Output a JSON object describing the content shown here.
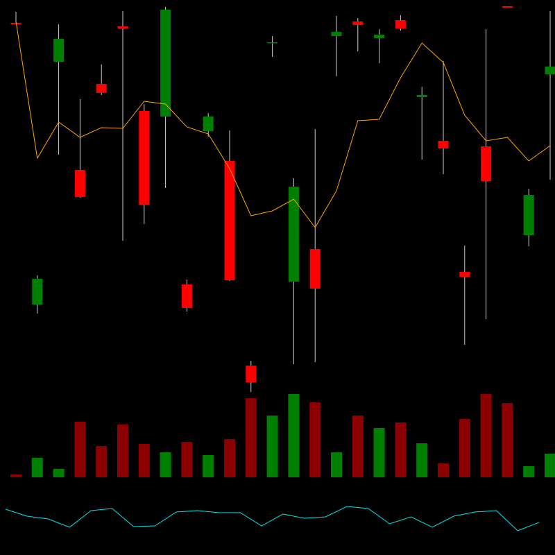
{
  "chart_data": [
    {
      "type": "candlestick",
      "up_color": "#008000",
      "down_color": "#ff0000",
      "wick_color": "#d0d0d0",
      "ylim": [
        0,
        570
      ],
      "open": [
        537,
        131,
        481,
        325,
        449,
        532,
        410,
        402,
        160,
        381,
        338,
        43,
        508,
        164,
        211,
        518,
        539,
        515,
        541,
        430,
        367,
        178,
        359,
        561,
        231,
        463
      ],
      "close": [
        535,
        168,
        514,
        286,
        436,
        529,
        275,
        556,
        126,
        402,
        166,
        19,
        509,
        301,
        154,
        524,
        534,
        520,
        529,
        433,
        356,
        171,
        309,
        559,
        289,
        474
      ],
      "high": [
        553,
        173,
        535,
        427,
        477,
        554,
        420,
        560,
        167,
        407,
        382,
        50,
        518,
        313,
        384,
        547,
        544,
        528,
        548,
        445,
        482,
        216,
        528,
        561,
        298,
        554
      ],
      "low": [
        535,
        118,
        347,
        285,
        433,
        223,
        247,
        299,
        121,
        373,
        165,
        5,
        488,
        45,
        48,
        460,
        496,
        479,
        526,
        340,
        319,
        73,
        110,
        559,
        215,
        311
      ],
      "series": [
        {
          "color": "#ffa500",
          "values": [
            539,
            342,
            394,
            372,
            386,
            385,
            424,
            420,
            387,
            377,
            327,
            259,
            266,
            283,
            242,
            295,
            396,
            398,
            458,
            508,
            480,
            404,
            367,
            372,
            338,
            360
          ]
        }
      ]
    },
    {
      "type": "bar",
      "up_color": "#008000",
      "down_color": "#8b0000",
      "ylim": [
        0,
        130
      ],
      "values": [
        4,
        28,
        12,
        80,
        45,
        76,
        48,
        36,
        51,
        32,
        55,
        114,
        89,
        120,
        108,
        36,
        89,
        71,
        79,
        49,
        20,
        84,
        120,
        107,
        16,
        34
      ]
    },
    {
      "type": "line",
      "color": "#00e5ee",
      "ylim": [
        0,
        100
      ],
      "values": [
        66,
        56,
        52,
        40,
        64,
        67,
        41,
        42,
        62,
        64,
        61,
        61,
        42,
        59,
        53,
        55,
        70,
        67,
        45,
        55,
        40,
        56,
        62,
        64,
        35,
        47
      ]
    }
  ]
}
